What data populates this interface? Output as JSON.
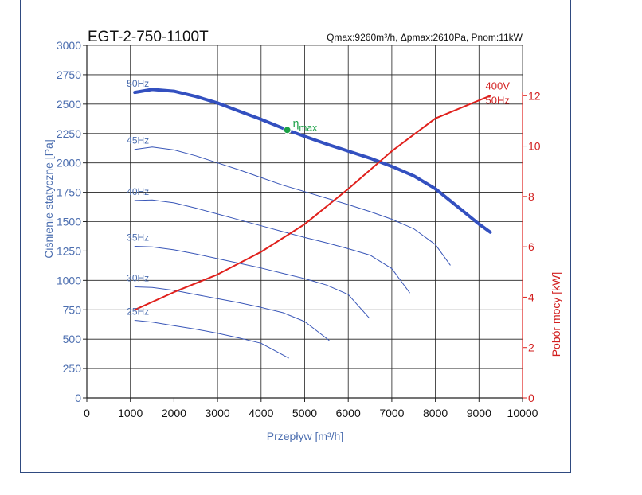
{
  "chart_data": {
    "type": "line",
    "title": "EGT-2-750-1100T",
    "subtitle": "Qmax:9260m³/h, Δpmax:2610Pa, Pnom:11kW",
    "xlabel": "Przepływ [m³/h]",
    "ylabel": "Ciśnienie statyczne [Pa]",
    "y2label": "Pobór mocy [kW]",
    "xlim": [
      0,
      10000
    ],
    "ylim": [
      0,
      3000
    ],
    "y2lim": [
      0,
      14
    ],
    "xticks": [
      0,
      1000,
      2000,
      3000,
      4000,
      5000,
      6000,
      7000,
      8000,
      9000,
      10000
    ],
    "yticks": [
      0,
      250,
      500,
      750,
      1000,
      1250,
      1500,
      1750,
      2000,
      2250,
      2500,
      2750,
      3000
    ],
    "y2ticks": [
      0,
      2,
      4,
      6,
      8,
      10,
      12
    ],
    "grid": true,
    "colors": {
      "main": "#3350c0",
      "thin": "#3a57b8",
      "power": "#e0201c",
      "eta": "#1aa046",
      "title": "#111111",
      "left_axis_text": "#4d6fb0",
      "right_axis_text": "#d21f1f",
      "frame": "#2f4a80"
    },
    "series": [
      {
        "name": "50Hz",
        "line": "thick",
        "x": [
          1100,
          1500,
          2000,
          2500,
          3000,
          3500,
          4000,
          4600,
          5000,
          5500,
          6000,
          6500,
          7000,
          7500,
          8000,
          8500,
          9000,
          9260
        ],
        "y": [
          2600,
          2625,
          2610,
          2565,
          2510,
          2440,
          2370,
          2280,
          2225,
          2160,
          2100,
          2040,
          1970,
          1890,
          1780,
          1630,
          1480,
          1410
        ]
      },
      {
        "name": "45Hz",
        "line": "thin",
        "x": [
          1100,
          1500,
          2000,
          2500,
          3000,
          3500,
          4000,
          4500,
          5000,
          5500,
          6000,
          6500,
          7000,
          7500,
          8000,
          8340
        ],
        "y": [
          2115,
          2135,
          2110,
          2060,
          2000,
          1940,
          1875,
          1810,
          1755,
          1700,
          1645,
          1585,
          1520,
          1440,
          1305,
          1130
        ]
      },
      {
        "name": "40Hz",
        "line": "thin",
        "x": [
          1100,
          1500,
          2000,
          2500,
          3000,
          3500,
          4000,
          4500,
          5000,
          5500,
          6000,
          6500,
          7000,
          7410
        ],
        "y": [
          1680,
          1685,
          1660,
          1615,
          1565,
          1515,
          1465,
          1415,
          1365,
          1320,
          1270,
          1215,
          1100,
          895
        ]
      },
      {
        "name": "35Hz",
        "line": "thin",
        "x": [
          1100,
          1500,
          2000,
          2500,
          3000,
          3500,
          4000,
          4500,
          5000,
          5500,
          6000,
          6480
        ],
        "y": [
          1290,
          1285,
          1260,
          1225,
          1185,
          1145,
          1105,
          1060,
          1015,
          960,
          880,
          680
        ]
      },
      {
        "name": "30Hz",
        "line": "thin",
        "x": [
          1100,
          1500,
          2000,
          2500,
          3000,
          3500,
          4000,
          4500,
          5000,
          5560
        ],
        "y": [
          945,
          940,
          915,
          880,
          845,
          810,
          770,
          725,
          650,
          490
        ]
      },
      {
        "name": "25Hz",
        "line": "thin",
        "x": [
          1100,
          1500,
          2000,
          2500,
          3000,
          3500,
          4000,
          4630
        ],
        "y": [
          660,
          645,
          615,
          585,
          550,
          510,
          465,
          340
        ]
      }
    ],
    "power_series": {
      "name": "400V 50Hz",
      "axis": "right",
      "x": [
        1100,
        2000,
        3000,
        4000,
        5000,
        6000,
        7000,
        8000,
        9260
      ],
      "y": [
        3.5,
        4.2,
        4.9,
        5.8,
        6.9,
        8.3,
        9.8,
        11.1,
        12.0
      ]
    },
    "annotations": {
      "eta_label": "η",
      "eta_sub": "max",
      "eta_point": {
        "x": 4600,
        "y": 2280
      },
      "power_label_1": "400V",
      "power_label_2": "50Hz"
    }
  }
}
